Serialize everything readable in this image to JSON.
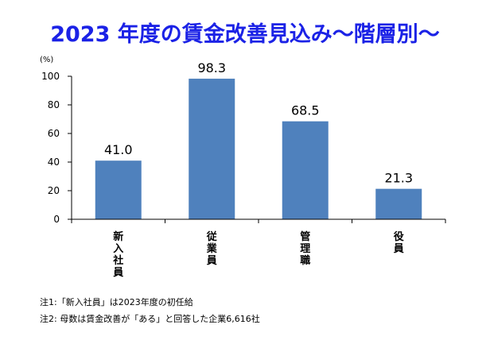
{
  "chart_data": {
    "type": "bar",
    "title": "2023 年度の賃金改善見込み～階層別～",
    "unit_label": "(%)",
    "categories": [
      "新入社員",
      "従業員",
      "管理職",
      "役員"
    ],
    "values": [
      41.0,
      98.3,
      68.5,
      21.3
    ],
    "value_labels": [
      "41.0",
      "98.3",
      "68.5",
      "21.3"
    ],
    "ylim": [
      0,
      100
    ],
    "yticks": [
      0,
      20,
      40,
      60,
      80,
      100
    ],
    "grid": false,
    "bar_color": "#4f81bd",
    "xlabel": "",
    "ylabel": ""
  },
  "notes": [
    "注1:「新入社員」は2023年度の初任給",
    "注2: 母数は賃金改善が「ある」と回答した企業6,616社"
  ],
  "colors": {
    "title": "#1b22e6",
    "bar": "#4f81bd",
    "axis": "#000000"
  }
}
